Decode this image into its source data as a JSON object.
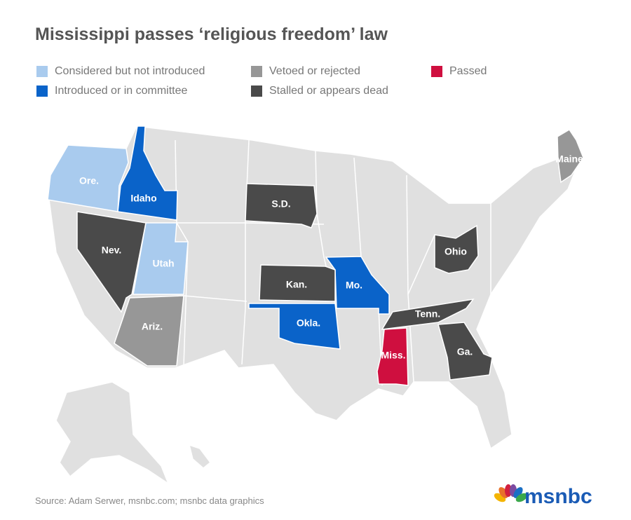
{
  "header": {
    "title": "Mississippi passes ‘religious freedom’ law"
  },
  "legend": [
    {
      "label": "Considered but not introduced",
      "color": "#a9cbee",
      "states": [
        "Ore.",
        "Utah"
      ]
    },
    {
      "label": "Introduced or in committee",
      "color": "#0a63c9",
      "states": [
        "Idaho",
        "Mo.",
        "Okla."
      ]
    },
    {
      "label": "Vetoed or rejected",
      "color": "#979797",
      "states": [
        "Ariz.",
        "Maine"
      ]
    },
    {
      "label": "Stalled or appears dead",
      "color": "#4a4a4a",
      "states": [
        "S.D.",
        "Kan.",
        "Nev.",
        "Tenn.",
        "Ga.",
        "Ohio"
      ]
    },
    {
      "label": "Passed",
      "color": "#cf0f3f",
      "states": [
        "Miss."
      ]
    }
  ],
  "footer": {
    "source": "Source: Adam Serwer, msnbc.com; msnbc data graphics",
    "logo": "msnbc"
  }
}
